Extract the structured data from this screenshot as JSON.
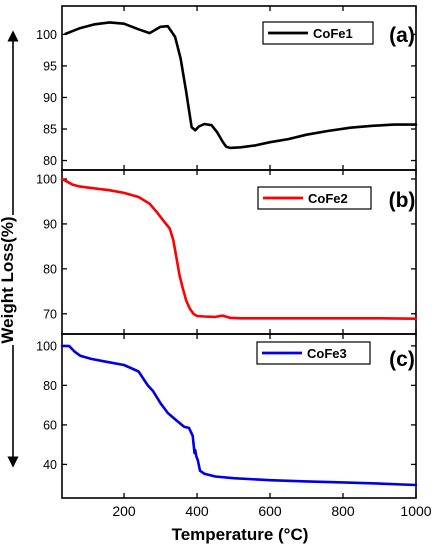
{
  "y_axis_title": "Weight Loss(%)",
  "x_axis_title": "Temperature (°C)",
  "chart_data": [
    {
      "type": "line",
      "panel_label": "(a)",
      "series": [
        {
          "name": "CoFe1",
          "color": "#000000",
          "x": [
            40,
            80,
            120,
            160,
            200,
            240,
            270,
            300,
            320,
            340,
            355,
            370,
            385,
            395,
            405,
            420,
            440,
            455,
            470,
            480,
            490,
            520,
            560,
            600,
            650,
            700,
            760,
            820,
            880,
            940,
            1000
          ],
          "y": [
            100.1,
            101.0,
            101.6,
            101.9,
            101.7,
            100.8,
            100.2,
            101.2,
            101.3,
            99.6,
            96.2,
            91.0,
            85.3,
            84.8,
            85.4,
            85.8,
            85.6,
            84.5,
            83.0,
            82.2,
            82.0,
            82.1,
            82.4,
            82.9,
            83.4,
            84.1,
            84.7,
            85.2,
            85.5,
            85.7,
            85.7
          ]
        }
      ],
      "xlim": [
        30,
        1000
      ],
      "ylim": [
        78.5,
        104.5
      ],
      "yticks": [
        80,
        85,
        90,
        95,
        100
      ]
    },
    {
      "type": "line",
      "panel_label": "(b)",
      "series": [
        {
          "name": "CoFe2",
          "color": "#ff0000",
          "x": [
            30,
            40,
            60,
            80,
            120,
            160,
            200,
            240,
            270,
            290,
            310,
            325,
            335,
            345,
            352,
            360,
            370,
            380,
            390,
            400,
            420,
            450,
            470,
            490,
            520,
            600,
            700,
            800,
            900,
            1000
          ],
          "y": [
            100.0,
            99.6,
            98.7,
            98.3,
            97.9,
            97.5,
            96.9,
            96.0,
            94.5,
            92.6,
            90.5,
            89.0,
            86.4,
            81.8,
            78.6,
            76.0,
            73.0,
            71.2,
            70.0,
            69.5,
            69.4,
            69.3,
            69.6,
            69.1,
            69.0,
            69.0,
            69.0,
            69.0,
            69.0,
            68.9
          ]
        }
      ],
      "xlim": [
        30,
        1000
      ],
      "ylim": [
        65.5,
        102
      ],
      "yticks": [
        70,
        80,
        90,
        100
      ]
    },
    {
      "type": "line",
      "panel_label": "(c)",
      "series": [
        {
          "name": "CoFe3",
          "color": "#0000e6",
          "x": [
            30,
            50,
            65,
            80,
            110,
            150,
            200,
            240,
            265,
            280,
            300,
            320,
            345,
            365,
            378,
            388,
            393,
            395,
            398,
            402,
            408,
            420,
            450,
            500,
            600,
            700,
            800,
            900,
            1000
          ],
          "y": [
            100.0,
            99.9,
            97.0,
            95.0,
            93.4,
            92.0,
            90.3,
            87.0,
            80.0,
            77.0,
            71.0,
            66.0,
            62.0,
            59.0,
            58.5,
            54.5,
            45.8,
            47.3,
            44.1,
            42.2,
            36.8,
            35.3,
            33.9,
            33.0,
            32.0,
            31.4,
            30.9,
            30.3,
            29.6
          ]
        }
      ],
      "xlim": [
        30,
        1000
      ],
      "ylim": [
        23,
        106
      ],
      "yticks": [
        20,
        40,
        60,
        80,
        100
      ],
      "xticks": [
        200,
        400,
        600,
        800,
        1000
      ],
      "show_xtick_labels": true
    }
  ]
}
